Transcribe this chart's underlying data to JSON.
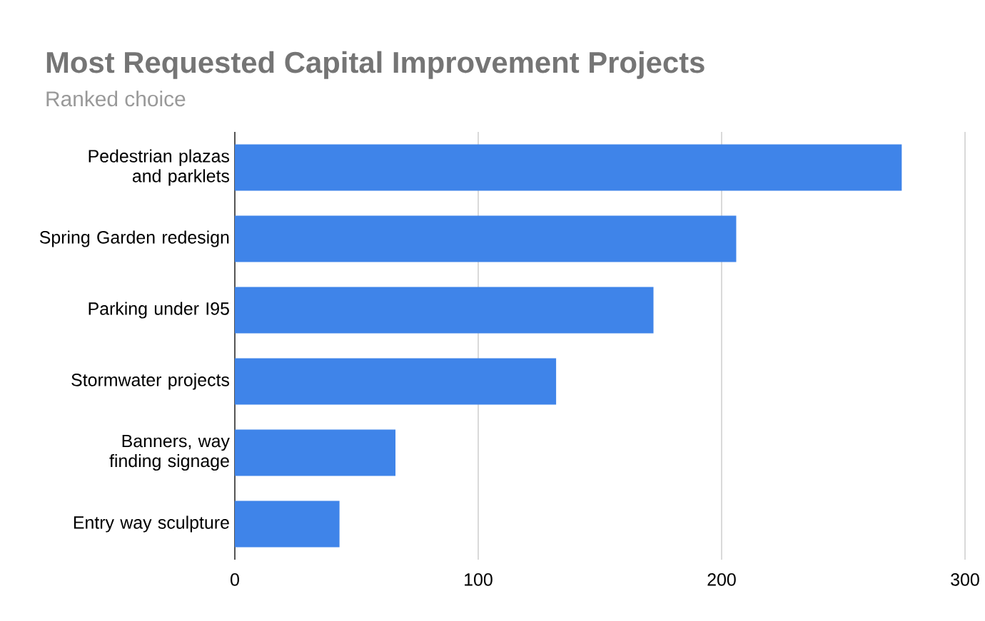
{
  "chart_data": {
    "type": "bar",
    "orientation": "horizontal",
    "title": "Most Requested Capital Improvement Projects",
    "subtitle": "Ranked choice",
    "categories": [
      "Pedestrian plazas and parklets",
      "Spring Garden redesign",
      "Parking under I95",
      "Stormwater projects",
      "Banners, way finding signage",
      "Entry way sculpture"
    ],
    "values": [
      274,
      206,
      172,
      132,
      66,
      43
    ],
    "color": "#3f84e9",
    "xlim": [
      0,
      300
    ],
    "xticks": [
      0,
      100,
      200,
      300
    ],
    "grid": "x"
  }
}
